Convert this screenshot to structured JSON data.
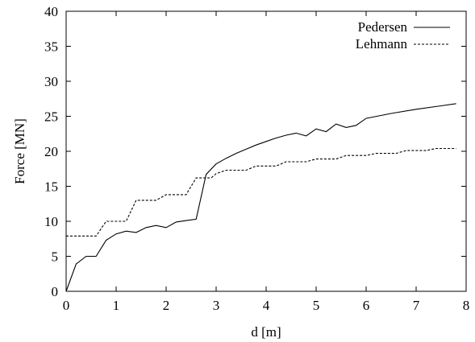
{
  "chart_data": {
    "type": "line",
    "title": "",
    "xlabel": "d [m]",
    "ylabel": "Force [MN]",
    "xlim": [
      0,
      8
    ],
    "ylim": [
      0,
      40
    ],
    "x_ticks": [
      "0",
      "1",
      "2",
      "3",
      "4",
      "5",
      "6",
      "7",
      "8"
    ],
    "y_ticks": [
      "0",
      "5",
      "10",
      "15",
      "20",
      "25",
      "30",
      "35",
      "40"
    ],
    "grid": false,
    "legend_position": "top-right",
    "series": [
      {
        "name": "Pedersen",
        "style": "solid",
        "color": "#000000",
        "x": [
          0,
          0.2,
          0.4,
          0.6,
          0.8,
          1.0,
          1.2,
          1.4,
          1.6,
          1.8,
          2.0,
          2.2,
          2.4,
          2.6,
          2.8,
          3.0,
          3.2,
          3.4,
          3.6,
          3.8,
          4.0,
          4.2,
          4.4,
          4.6,
          4.8,
          5.0,
          5.2,
          5.4,
          5.6,
          5.8,
          6.0,
          6.5,
          7.0,
          7.5,
          7.8
        ],
        "y": [
          0,
          3.9,
          5.0,
          5.0,
          7.3,
          8.2,
          8.6,
          8.4,
          9.1,
          9.4,
          9.1,
          9.9,
          10.1,
          10.3,
          16.7,
          18.2,
          19.0,
          19.7,
          20.3,
          20.9,
          21.4,
          21.9,
          22.3,
          22.6,
          22.2,
          23.2,
          22.8,
          23.9,
          23.4,
          23.7,
          24.7,
          25.4,
          26.0,
          26.5,
          26.8
        ]
      },
      {
        "name": "Lehmann",
        "style": "dashed",
        "color": "#000000",
        "x": [
          0,
          0.6,
          0.8,
          1.2,
          1.4,
          1.8,
          2.0,
          2.4,
          2.6,
          2.9,
          3.0,
          3.2,
          3.6,
          3.8,
          4.2,
          4.4,
          4.8,
          5.0,
          5.4,
          5.6,
          6.0,
          6.2,
          6.6,
          6.8,
          7.2,
          7.4,
          7.8
        ],
        "y": [
          7.9,
          7.9,
          10.0,
          10.0,
          13.0,
          13.0,
          13.8,
          13.8,
          16.2,
          16.2,
          16.8,
          17.3,
          17.3,
          17.9,
          17.9,
          18.5,
          18.5,
          18.9,
          18.9,
          19.4,
          19.4,
          19.7,
          19.7,
          20.1,
          20.1,
          20.4,
          20.4
        ]
      }
    ]
  }
}
